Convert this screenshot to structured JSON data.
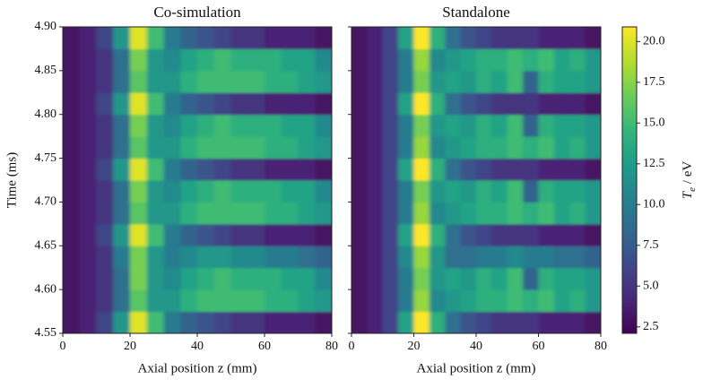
{
  "chart_data": [
    {
      "type": "heatmap",
      "title": "Co-simulation",
      "xlabel": "Axial position z (mm)",
      "ylabel": "Time (ms)",
      "xlim": [
        0,
        80
      ],
      "xticks": [
        0,
        20,
        40,
        60,
        80
      ],
      "ylim": [
        4.55,
        4.9
      ],
      "yticks": [
        4.55,
        {
          "value": 4.6,
          "label": "4.60"
        },
        4.65,
        {
          "value": 4.7,
          "label": "4.70"
        },
        4.75,
        {
          "value": 4.8,
          "label": "4.80"
        },
        4.85,
        {
          "value": 4.9,
          "label": "4.90"
        }
      ],
      "x": [
        2.5,
        7.5,
        12.5,
        17.5,
        22.5,
        27.5,
        32.5,
        37.5,
        42.5,
        47.5,
        52.5,
        57.5,
        62.5,
        67.5,
        72.5,
        77.5
      ],
      "y": [
        4.5625,
        4.5875,
        4.6125,
        4.6375,
        4.6625,
        4.6875,
        4.7125,
        4.7375,
        4.7625,
        4.7875,
        4.8125,
        4.8375,
        4.8625,
        4.8875
      ],
      "z": [
        [
          3,
          4,
          6,
          12,
          20,
          15,
          10,
          8,
          7,
          6,
          5,
          5,
          4,
          4,
          4,
          3
        ],
        [
          3,
          4,
          5,
          9,
          16,
          12,
          12,
          14,
          15,
          15,
          15,
          15,
          14,
          14,
          13,
          12
        ],
        [
          3,
          4,
          5,
          9,
          17,
          12,
          11,
          13,
          14,
          15,
          14,
          14,
          14,
          13,
          13,
          11
        ],
        [
          3,
          4,
          5,
          10,
          17,
          12,
          10,
          11,
          12,
          12,
          11,
          11,
          10,
          10,
          9,
          8
        ],
        [
          3,
          4,
          6,
          12,
          20,
          15,
          10,
          8,
          7,
          6,
          5,
          5,
          4,
          4,
          4,
          3
        ],
        [
          3,
          4,
          5,
          9,
          16,
          12,
          12,
          14,
          15,
          15,
          15,
          15,
          14,
          14,
          13,
          12
        ],
        [
          3,
          4,
          5,
          9,
          17,
          12,
          11,
          13,
          14,
          15,
          14,
          14,
          14,
          13,
          13,
          11
        ],
        [
          3,
          4,
          6,
          12,
          20,
          15,
          10,
          8,
          7,
          6,
          5,
          5,
          4,
          4,
          4,
          3
        ],
        [
          3,
          4,
          5,
          9,
          16,
          12,
          12,
          14,
          15,
          15,
          15,
          15,
          14,
          14,
          13,
          12
        ],
        [
          3,
          4,
          5,
          9,
          17,
          12,
          11,
          13,
          14,
          15,
          14,
          14,
          14,
          13,
          13,
          11
        ],
        [
          3,
          4,
          6,
          12,
          20,
          15,
          10,
          8,
          7,
          6,
          5,
          5,
          4,
          4,
          4,
          3
        ],
        [
          3,
          4,
          5,
          9,
          16,
          12,
          12,
          14,
          15,
          15,
          15,
          15,
          14,
          14,
          13,
          12
        ],
        [
          3,
          4,
          5,
          9,
          17,
          12,
          11,
          13,
          14,
          15,
          14,
          14,
          14,
          13,
          13,
          11
        ],
        [
          3,
          4,
          6,
          12,
          20,
          15,
          10,
          8,
          7,
          6,
          5,
          5,
          4,
          4,
          4,
          3
        ]
      ]
    },
    {
      "type": "heatmap",
      "title": "Standalone",
      "xlabel": "Axial position z (mm)",
      "xlim": [
        0,
        80
      ],
      "xticks": [
        0,
        20,
        40,
        60,
        80
      ],
      "ylim": [
        4.55,
        4.9
      ],
      "x": [
        2.5,
        7.5,
        12.5,
        17.5,
        22.5,
        27.5,
        32.5,
        37.5,
        42.5,
        47.5,
        52.5,
        57.5,
        62.5,
        67.5,
        72.5,
        77.5
      ],
      "y": [
        4.5625,
        4.5875,
        4.6125,
        4.6375,
        4.6625,
        4.6875,
        4.7125,
        4.7375,
        4.7625,
        4.7875,
        4.8125,
        4.8375,
        4.8625,
        4.8875
      ],
      "z": [
        [
          3,
          4,
          6,
          13,
          21,
          14,
          9,
          7,
          6,
          5,
          5,
          5,
          4,
          4,
          4,
          3
        ],
        [
          3,
          4,
          6,
          10,
          18,
          11,
          12,
          13,
          14,
          14,
          15,
          14,
          15,
          13,
          14,
          12
        ],
        [
          3,
          4,
          6,
          10,
          17,
          12,
          13,
          12,
          14,
          13,
          15,
          8,
          14,
          13,
          13,
          12
        ],
        [
          3,
          4,
          6,
          11,
          18,
          12,
          9,
          9,
          10,
          10,
          11,
          10,
          10,
          9,
          9,
          8
        ],
        [
          3,
          4,
          6,
          13,
          21,
          14,
          9,
          7,
          6,
          5,
          5,
          5,
          4,
          4,
          4,
          3
        ],
        [
          3,
          4,
          6,
          10,
          18,
          11,
          12,
          13,
          14,
          14,
          15,
          14,
          15,
          13,
          14,
          12
        ],
        [
          3,
          4,
          6,
          10,
          17,
          12,
          13,
          12,
          14,
          13,
          15,
          8,
          14,
          13,
          13,
          12
        ],
        [
          3,
          4,
          6,
          13,
          21,
          14,
          9,
          7,
          6,
          5,
          5,
          5,
          4,
          4,
          4,
          3
        ],
        [
          3,
          4,
          6,
          10,
          18,
          11,
          12,
          13,
          14,
          14,
          15,
          14,
          15,
          13,
          14,
          12
        ],
        [
          3,
          4,
          6,
          10,
          17,
          12,
          13,
          12,
          14,
          13,
          15,
          8,
          14,
          13,
          13,
          12
        ],
        [
          3,
          4,
          6,
          13,
          21,
          14,
          9,
          7,
          6,
          5,
          5,
          5,
          4,
          4,
          4,
          3
        ],
        [
          3,
          4,
          6,
          10,
          17,
          12,
          13,
          12,
          14,
          13,
          15,
          8,
          14,
          13,
          13,
          12
        ],
        [
          3,
          4,
          6,
          10,
          18,
          11,
          12,
          13,
          14,
          14,
          15,
          14,
          15,
          13,
          14,
          12
        ],
        [
          3,
          4,
          6,
          13,
          21,
          14,
          9,
          7,
          6,
          5,
          5,
          5,
          4,
          4,
          4,
          3
        ]
      ]
    }
  ],
  "colorbar": {
    "colormap": "viridis",
    "lim": [
      2.1,
      20.9
    ],
    "ticks": [
      2.5,
      {
        "value": 5,
        "label": "5.0"
      },
      7.5,
      {
        "value": 10,
        "label": "10.0"
      },
      12.5,
      {
        "value": 15,
        "label": "15.0"
      },
      17.5,
      {
        "value": 20,
        "label": "20.0"
      }
    ],
    "label": {
      "symbol": "T",
      "subscript": "e",
      "unit": " / eV"
    }
  }
}
